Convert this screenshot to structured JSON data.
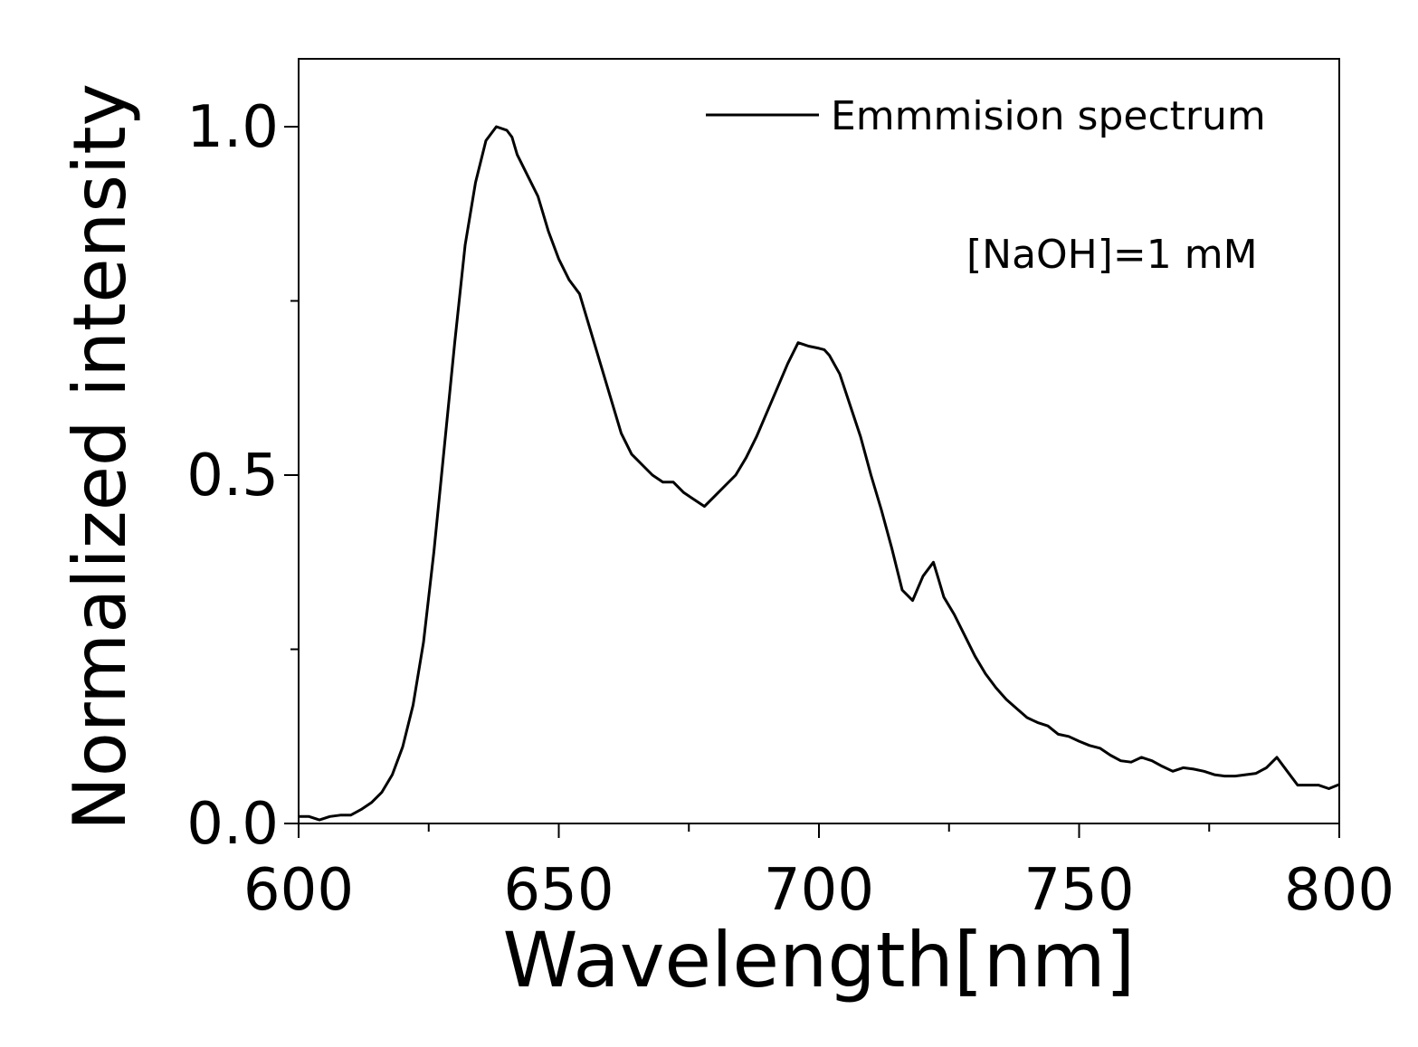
{
  "chart_data": {
    "type": "line",
    "title": "",
    "xlabel": "Wavelength[nm]",
    "ylabel": "Normalized intensity",
    "xlim": [
      600,
      800
    ],
    "ylim": [
      0,
      1.1
    ],
    "xticks": [
      600,
      650,
      700,
      750,
      800
    ],
    "xtick_labels": [
      "600",
      "650",
      "700",
      "750",
      "800"
    ],
    "xminor": [
      625,
      675,
      725,
      775
    ],
    "yticks": [
      0,
      0.5,
      1.0
    ],
    "ytick_labels": [
      "0.0",
      "0.5",
      "1.0"
    ],
    "yminor": [
      0.25,
      0.75
    ],
    "grid": false,
    "legend": {
      "position": "top-right",
      "entries": [
        "Emmmision spectrum"
      ]
    },
    "annotation": "[NaOH]=1 mM",
    "series": [
      {
        "name": "Emmmision spectrum",
        "color": "#000000",
        "x": [
          600,
          602,
          604,
          606,
          608,
          610,
          612,
          614,
          616,
          618,
          620,
          622,
          624,
          626,
          628,
          630,
          632,
          634,
          636,
          638,
          640,
          641,
          642,
          644,
          646,
          648,
          650,
          652,
          654,
          656,
          658,
          660,
          662,
          664,
          666,
          668,
          670,
          672,
          674,
          676,
          678,
          680,
          682,
          684,
          686,
          688,
          690,
          692,
          694,
          696,
          698,
          700,
          701,
          702,
          704,
          706,
          708,
          710,
          712,
          714,
          716,
          718,
          720,
          722,
          723,
          724,
          726,
          728,
          730,
          732,
          734,
          736,
          738,
          740,
          742,
          744,
          746,
          748,
          750,
          752,
          754,
          756,
          758,
          760,
          762,
          764,
          766,
          768,
          770,
          772,
          774,
          776,
          778,
          780,
          782,
          784,
          786,
          788,
          790,
          792,
          794,
          796,
          798,
          800
        ],
        "y": [
          0.01,
          0.01,
          0.005,
          0.01,
          0.012,
          0.012,
          0.02,
          0.03,
          0.045,
          0.07,
          0.11,
          0.17,
          0.26,
          0.39,
          0.54,
          0.69,
          0.83,
          0.92,
          0.98,
          1.0,
          0.995,
          0.985,
          0.96,
          0.93,
          0.9,
          0.85,
          0.81,
          0.78,
          0.76,
          0.71,
          0.66,
          0.61,
          0.56,
          0.53,
          0.515,
          0.5,
          0.49,
          0.49,
          0.475,
          0.465,
          0.455,
          0.47,
          0.485,
          0.5,
          0.525,
          0.555,
          0.59,
          0.625,
          0.66,
          0.69,
          0.685,
          0.682,
          0.68,
          0.672,
          0.645,
          0.6,
          0.555,
          0.5,
          0.45,
          0.395,
          0.335,
          0.32,
          0.355,
          0.375,
          0.35,
          0.325,
          0.3,
          0.27,
          0.24,
          0.215,
          0.195,
          0.178,
          0.165,
          0.152,
          0.145,
          0.14,
          0.128,
          0.125,
          0.118,
          0.112,
          0.108,
          0.098,
          0.09,
          0.088,
          0.095,
          0.09,
          0.082,
          0.075,
          0.08,
          0.078,
          0.075,
          0.07,
          0.068,
          0.068,
          0.07,
          0.072,
          0.08,
          0.095,
          0.075,
          0.055,
          0.055,
          0.055,
          0.05,
          0.056
        ]
      }
    ]
  }
}
